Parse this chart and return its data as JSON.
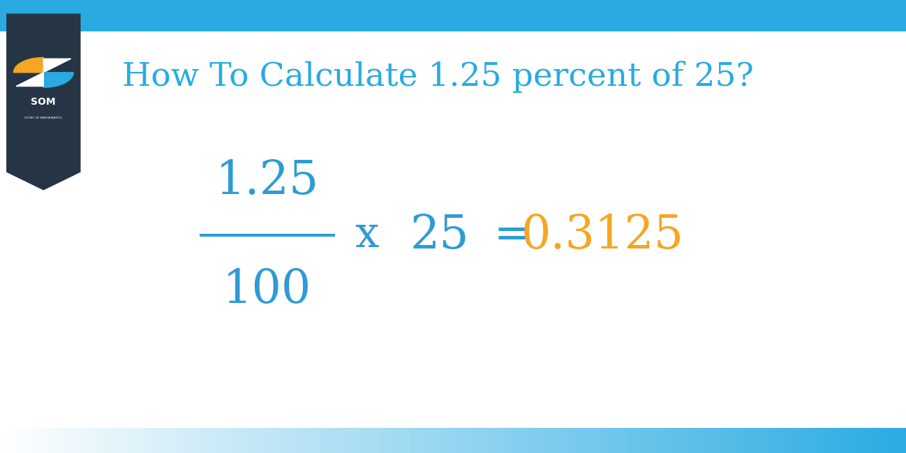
{
  "title": "How To Calculate 1.25 percent of 25?",
  "title_color": "#29ABE2",
  "title_fontsize": 34,
  "bg_color": "#ffffff",
  "numerator": "1.25",
  "denominator": "100",
  "fraction_color": "#2E9BD6",
  "multiply_symbol": "x",
  "multiply_value": "25",
  "equals_symbol": "=",
  "result": "0.3125",
  "result_color": "#F5A623",
  "math_color": "#2E9BD6",
  "bar_color": "#29ABE2",
  "logo_bg_color": "#253545",
  "logo_orange": "#F5A623",
  "logo_blue": "#29ABE2",
  "logo_white": "#FFFFFF"
}
